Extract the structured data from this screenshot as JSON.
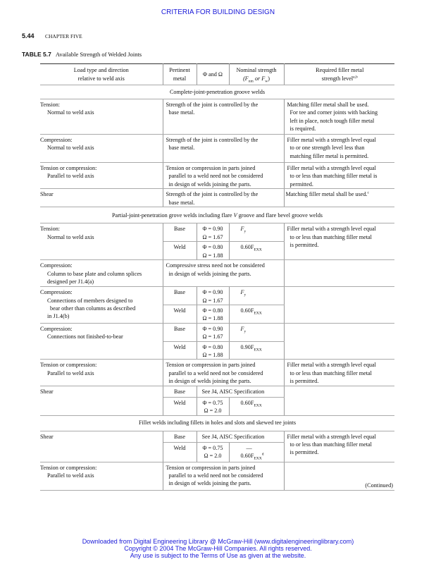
{
  "running_head": "CRITERIA FOR BUILDING DESIGN",
  "page_number": "5.44",
  "chapter": "CHAPTER FIVE",
  "table_label": "TABLE 5.7",
  "table_title": "Available Strength of Welded Joints",
  "columns": {
    "load_1": "Load type and direction",
    "load_2": "relative to weld axis",
    "metal_1": "Pertinent",
    "metal_2": "metal",
    "phi": "Φ and Ω",
    "nominal_1": "Nominal strength",
    "nominal_2_a": "(F",
    "nominal_2_sub1": "nm",
    "nominal_2_b": " or F",
    "nominal_2_sub2": "w",
    "nominal_2_c": ")",
    "filler_1": "Required filler metal",
    "filler_2": "strength level",
    "filler_sup": "a,b"
  },
  "common": {
    "base": "Base",
    "weld": "Weld",
    "fy": "F",
    "fy_sub": "y",
    "fexx_sub": "EXX",
    "see_j4": "See J4, AISC Specification",
    "dash": "—"
  },
  "sections": [
    {
      "title": "Complete-joint-penetration groove welds",
      "rows": [
        {
          "load": "Tension:",
          "load_sub": "Normal to weld axis",
          "strength": [
            "Strength of the joint is controlled by the",
            "base metal."
          ],
          "filler": [
            "Matching filler metal shall be used.",
            "For tee and corner joints with backing",
            "left in place, notch tough filler metal",
            "is required."
          ]
        },
        {
          "load": "Compression:",
          "load_sub": "Normal to weld axis",
          "strength": [
            "Strength of the joint is controlled by the",
            "base metal."
          ],
          "filler": [
            "Filler metal with a strength level equal",
            "to or one strength level less than",
            "matching filler metal is permitted."
          ]
        },
        {
          "load": "Tension or compression:",
          "load_sub": "Parallel to weld axis",
          "strength": [
            "Tension or compression in parts joined",
            "parallel to a weld need not be considered",
            "in design of welds joining the parts."
          ],
          "filler": [
            "Filler metal with a strength level equal",
            "to or less than matching filler metal is",
            "permitted."
          ]
        },
        {
          "load": "Shear",
          "strength": [
            "Strength of the joint is controlled by the",
            "base metal."
          ],
          "filler": [
            "Matching filler metal shall be used."
          ],
          "filler_sup": "c"
        }
      ]
    },
    {
      "title_a": "Partial-joint-penetration grove welds including flare ",
      "title_v": "V",
      "title_b": " groove and flare bevel groove welds",
      "rows": [
        {
          "load": "Tension:",
          "load_sub": "Normal to weld axis",
          "base_phi": [
            "Φ = 0.90",
            "Ω = 1.67"
          ],
          "weld_phi": [
            "Φ = 0.80",
            "Ω = 1.88"
          ],
          "weld_nominal": "0.60F",
          "filler": [
            "Filler metal with a strength level equal",
            "to or less than matching filler metal",
            "is permitted."
          ]
        },
        {
          "load": "Compression:",
          "load_sub": [
            "Column to base plate and column splices",
            "designed per J1.4(a)"
          ],
          "strength": [
            "Compressive stress need not be considered",
            "in design of welds joining the parts."
          ]
        },
        {
          "load": "Compression:",
          "load_sub": [
            "Connections of members designed to",
            "bear other than columns as described",
            "in J1.4(b)"
          ],
          "base_phi": [
            "Φ = 0.90",
            "Ω = 1.67"
          ],
          "weld_phi": [
            "Φ = 0.80",
            "Ω = 1.88"
          ],
          "weld_nominal": "0.60F"
        },
        {
          "load": "Compression:",
          "load_sub": "Connections not finished-to-bear",
          "base_phi": [
            "Φ = 0.90",
            "Ω = 1.67"
          ],
          "weld_phi": [
            "Φ = 0.80",
            "Ω = 1.88"
          ],
          "weld_nominal": "0.90F"
        },
        {
          "load": "Tension or compression:",
          "load_sub": "Parallel to weld axis",
          "strength": [
            "Tension or compression in parts joined",
            "parallel to a weld need not be considered",
            "in design of welds joining the parts."
          ],
          "filler": [
            "Filler metal with a strength level equal",
            "to or less than matching filler metal",
            "is permitted."
          ]
        },
        {
          "load": "Shear",
          "weld_phi": [
            "Φ = 0.75",
            "Ω = 2.0"
          ],
          "weld_nominal": "0.60F"
        }
      ]
    },
    {
      "title": "Fillet welds including fillets in holes and slots and skewed tee joints",
      "rows": [
        {
          "load": "Shear",
          "weld_phi": [
            "Φ = 0.75",
            "Ω = 2.0"
          ],
          "weld_nominal": "0.60F",
          "weld_nominal_sup": "d",
          "filler": [
            "Filler metal with a strength level equal",
            "to or less than matching filler metal",
            "is permitted."
          ]
        },
        {
          "load": "Tension or compression:",
          "load_sub": "Parallel to weld axis",
          "strength": [
            "Tension or compression in parts joined",
            "parallel to a weld need not be considered",
            "in design of welds joining the parts."
          ]
        }
      ]
    }
  ],
  "continued": "Continued",
  "footer": [
    "Downloaded from Digital Engineering Library @ McGraw-Hill (www.digitalengineeringlibrary.com)",
    "Copyright © 2004 The McGraw-Hill Companies. All rights reserved.",
    "Any use is subject to the Terms of Use as given at the website."
  ],
  "colors": {
    "link_blue": "#1a1ad8",
    "text": "#111111"
  }
}
